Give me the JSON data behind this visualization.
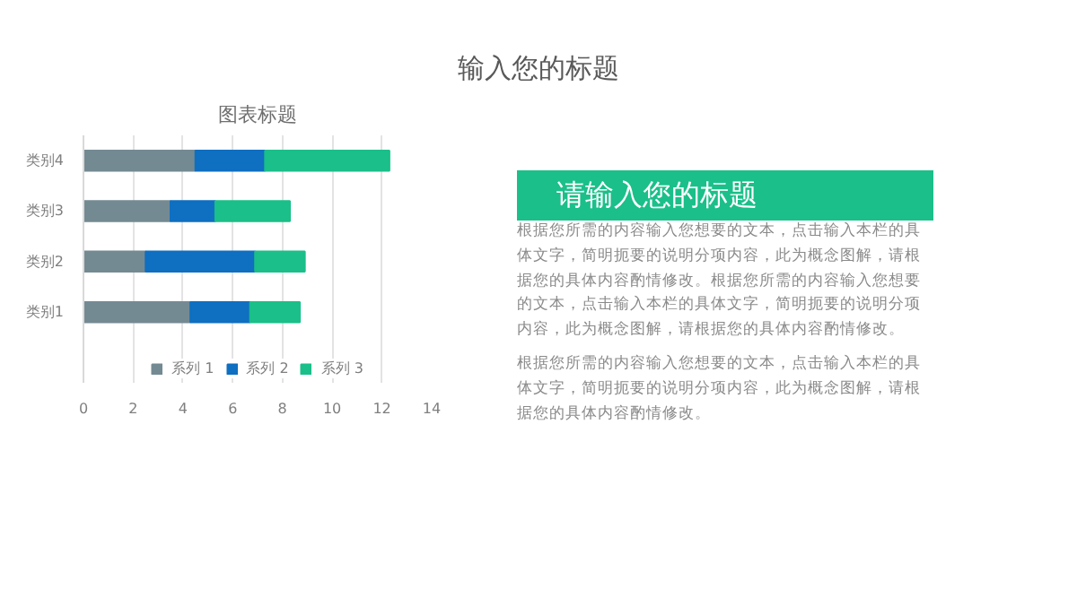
{
  "chart_data": {
    "type": "bar",
    "orientation": "horizontal",
    "stacked": true,
    "title": "图表标题",
    "categories": [
      "类别4",
      "类别3",
      "类别2",
      "类别1"
    ],
    "series": [
      {
        "name": "系列 1",
        "color": "#748a93",
        "values": [
          4.5,
          3.5,
          2.5,
          4.3
        ]
      },
      {
        "name": "系列 2",
        "color": "#0f6fc1",
        "values": [
          2.8,
          1.8,
          4.4,
          2.4
        ]
      },
      {
        "name": "系列 3",
        "color": "#1bbf89",
        "values": [
          5,
          3,
          2,
          2
        ]
      }
    ],
    "xlim": [
      0,
      14
    ],
    "xticks": [
      0,
      2,
      4,
      6,
      8,
      10,
      12,
      14
    ],
    "grid": "x",
    "legend": "bottom",
    "annotations": [
      "输入您的标题",
      "请输入您的标题",
      "根据您所需的内容输入您想要的文本，点击输入本栏的具体文字，简明扼要的说明分项内容，此为概念图解，请根据您的具体内容酌情修改。根据您所需的内容输入您想要的文本，点击输入本栏的具体文字，简明扼要的说明分项内容，此为概念图解，请根据您的具体内容酌情修改。",
      "根据您所需的内容输入您想要的文本，点击输入本栏的具体文字，简明扼要的说明分项内容，此为概念图解，请根据您的具体内容酌情修改。"
    ]
  }
}
